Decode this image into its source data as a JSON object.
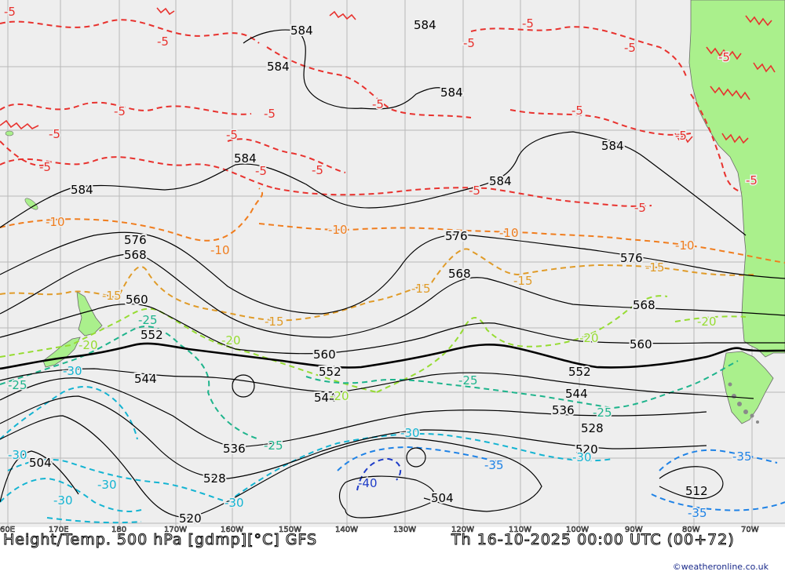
{
  "map": {
    "title": "Height/Temp. 500 hPa [gdmp][°C] GFS",
    "valid_time": "Th 16-10-2025 00:00 UTC (00+72)",
    "credit": "©weatheronline.co.uk",
    "colors": {
      "ocean": "#eeeeee",
      "land": "#aaf08c",
      "height_contour": "#000000",
      "temp_minus5": "#e8322e",
      "temp_minus10": "#f07d1e",
      "temp_minus15": "#e09b28",
      "temp_minus20": "#96dc32",
      "temp_minus25": "#1eb48c",
      "temp_minus30": "#14b4d2",
      "temp_minus35": "#1e82e6",
      "temp_minus40": "#1e3cc8"
    },
    "longitude_labels": [
      "60E",
      "170E",
      "180",
      "170W",
      "160W",
      "150W",
      "140W",
      "130W",
      "120W",
      "110W",
      "100W",
      "90W",
      "80W",
      "70W"
    ],
    "height_labels": [
      "584",
      "584",
      "584",
      "584",
      "584",
      "584",
      "584",
      "584",
      "576",
      "576",
      "576",
      "568",
      "568",
      "568",
      "560",
      "560",
      "560",
      "552",
      "552",
      "552",
      "544",
      "544",
      "544",
      "536",
      "536",
      "528",
      "528",
      "520",
      "520",
      "512",
      "504",
      "504"
    ],
    "temp_labels": [
      "-5",
      "-5",
      "-5",
      "-5",
      "-5",
      "-5",
      "-5",
      "-5",
      "-5",
      "-5",
      "-5",
      "-5",
      "-5",
      "-5",
      "-5",
      "-5",
      "-5",
      "-5",
      "-5",
      "-10",
      "-10",
      "-10",
      "-10",
      "-10",
      "-15",
      "-15",
      "-15",
      "-15",
      "-15",
      "-20",
      "-20",
      "-20",
      "-20",
      "-20",
      "-25",
      "-25",
      "-25",
      "-25",
      "-25",
      "-30",
      "-30",
      "-30",
      "-30",
      "-30",
      "-30",
      "-30",
      "-35",
      "-35",
      "-35",
      "-40"
    ]
  }
}
